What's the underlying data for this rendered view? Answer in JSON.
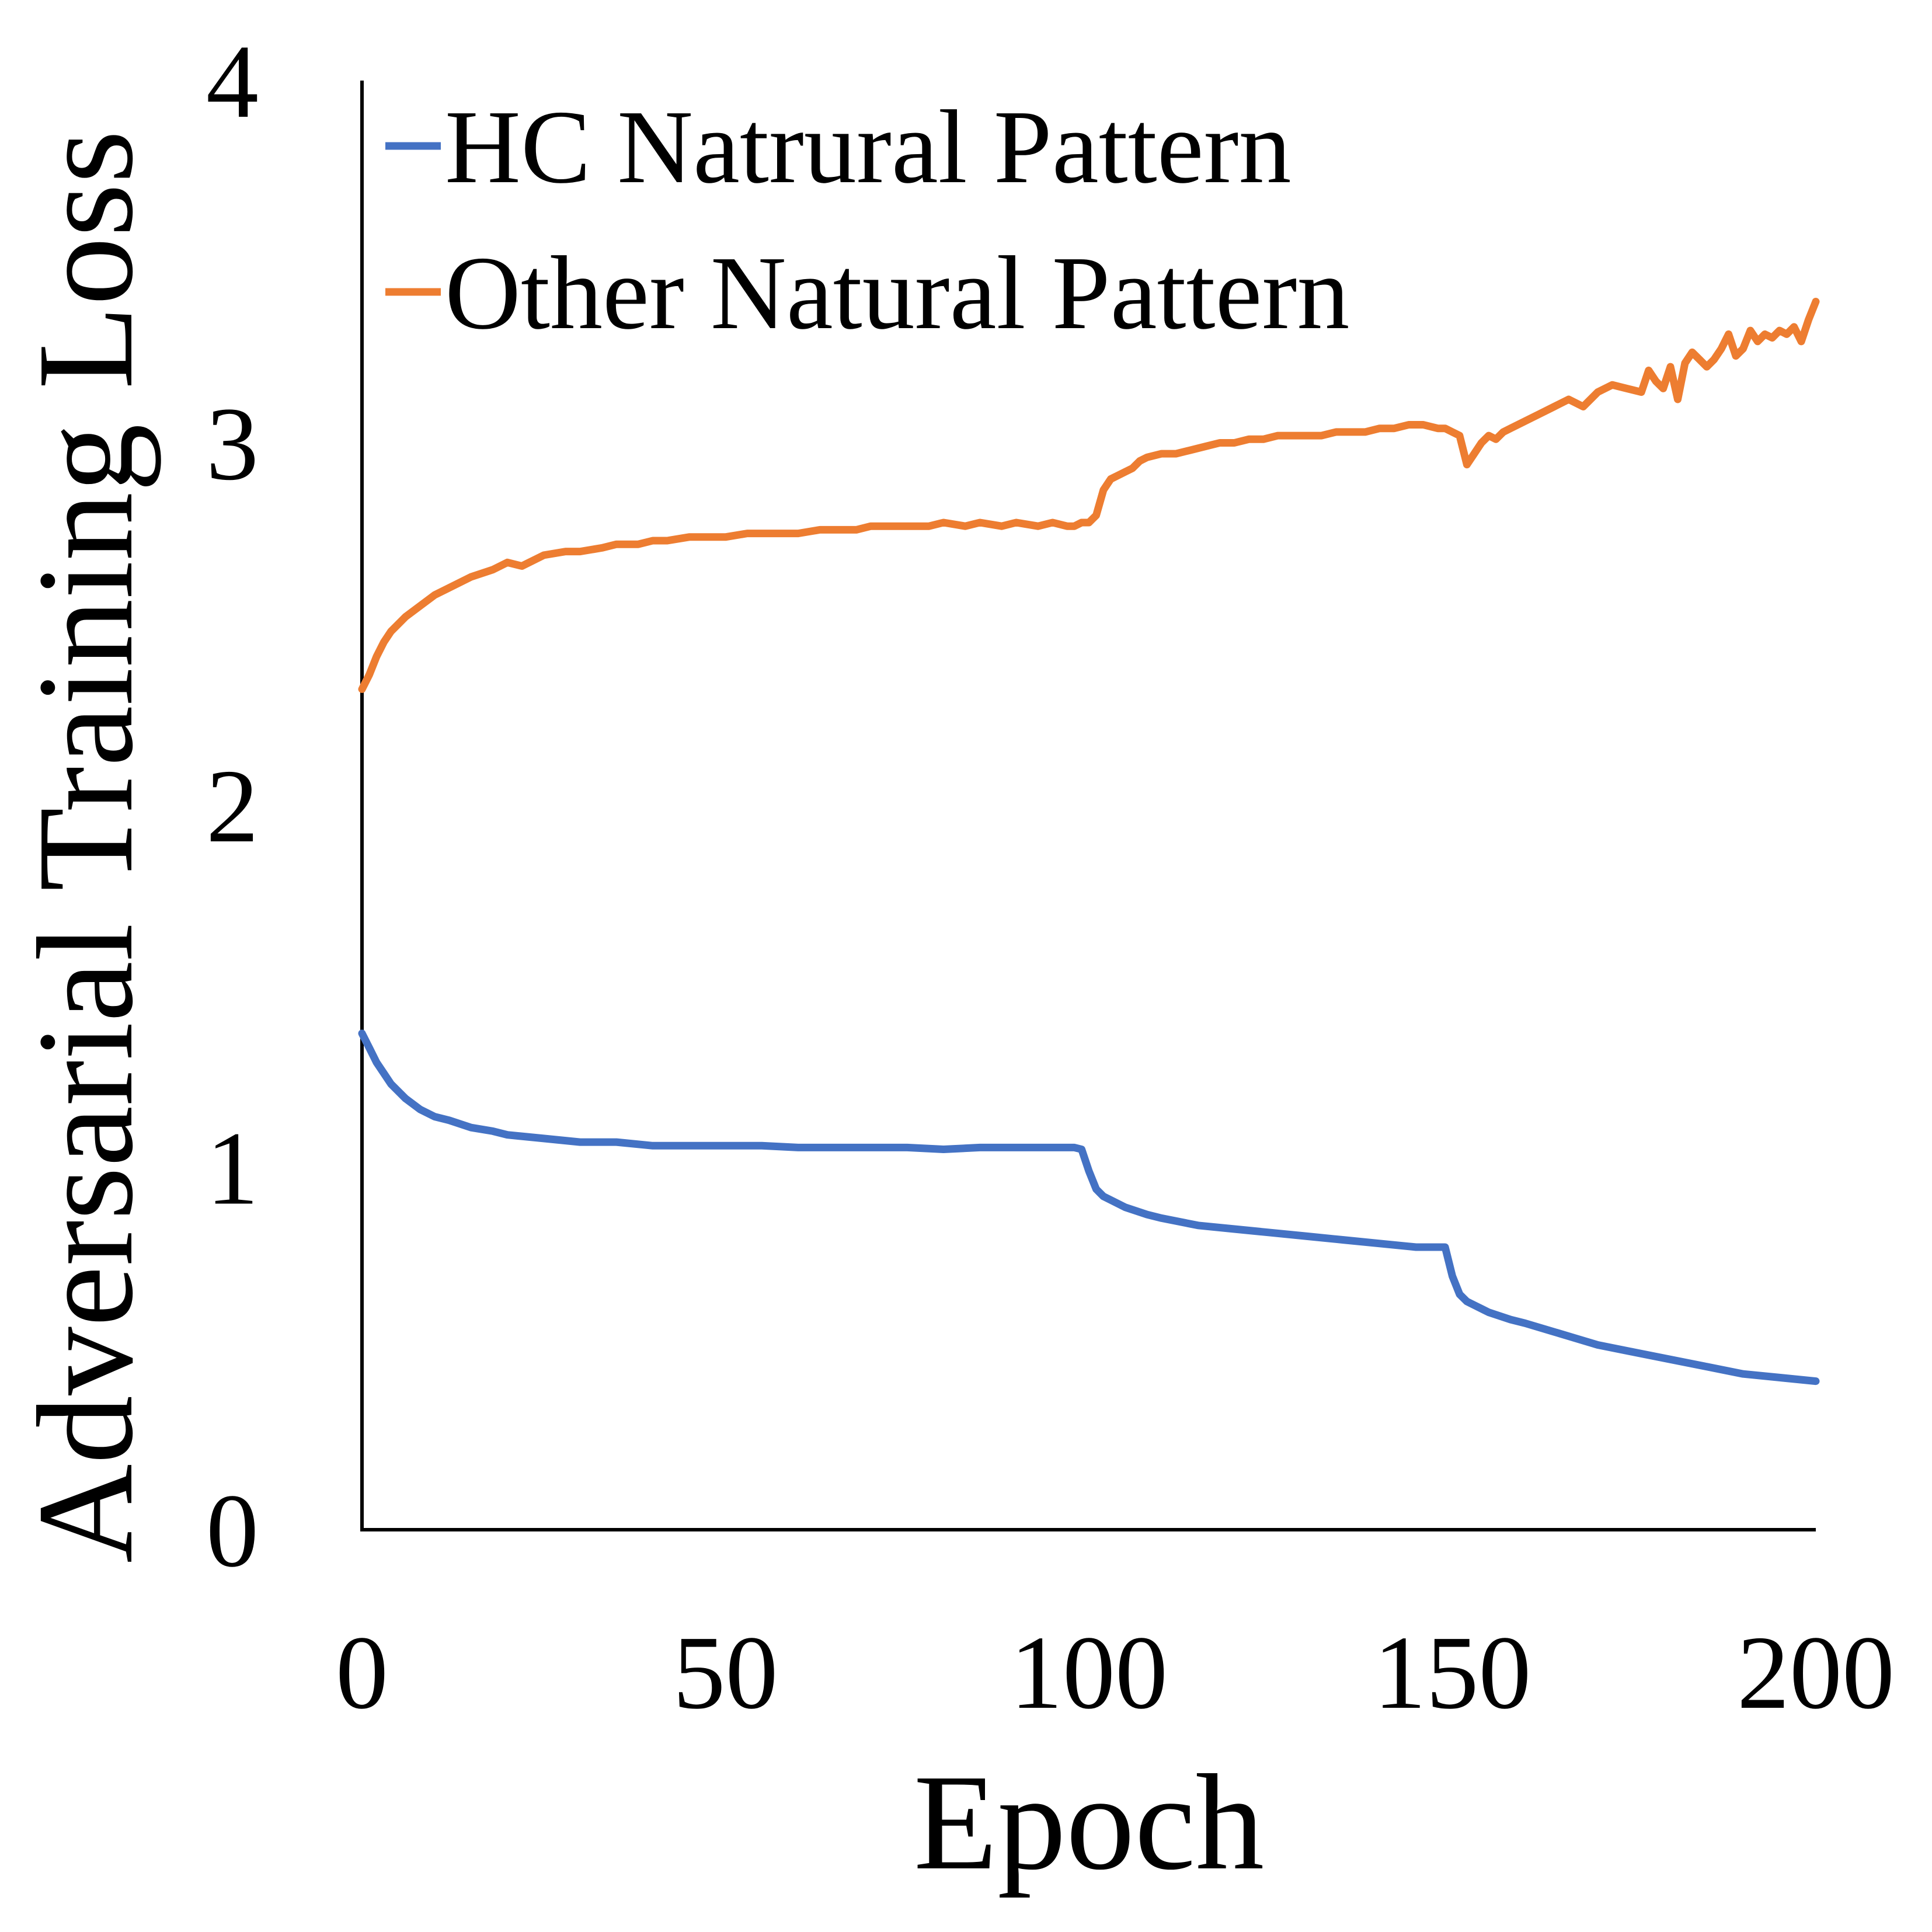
{
  "chart_data": {
    "type": "line",
    "title": "",
    "xlabel": "Epoch",
    "ylabel": "Adversarial Training Loss",
    "xlim": [
      0,
      200
    ],
    "ylim": [
      0,
      4
    ],
    "xticks": [
      0,
      50,
      100,
      150,
      200
    ],
    "yticks": [
      0,
      1,
      2,
      3,
      4
    ],
    "xtick_labels": [
      "0",
      "50",
      "100",
      "150",
      "200"
    ],
    "ytick_labels": [
      "0",
      "1",
      "2",
      "3",
      "4"
    ],
    "grid": false,
    "legend_position": "top-left",
    "series": [
      {
        "name": "HC Natrural Pattern",
        "color": "#4472C4",
        "x": [
          0,
          1,
          2,
          3,
          4,
          5,
          6,
          8,
          10,
          12,
          15,
          18,
          20,
          25,
          30,
          35,
          40,
          45,
          50,
          55,
          60,
          65,
          70,
          75,
          80,
          85,
          90,
          95,
          98,
          99,
          100,
          101,
          102,
          103,
          105,
          108,
          110,
          115,
          120,
          125,
          130,
          135,
          140,
          145,
          148,
          149,
          150,
          151,
          152,
          153,
          155,
          158,
          160,
          165,
          170,
          175,
          180,
          185,
          190,
          195,
          200
        ],
        "y": [
          1.37,
          1.33,
          1.29,
          1.26,
          1.23,
          1.21,
          1.19,
          1.16,
          1.14,
          1.13,
          1.11,
          1.1,
          1.09,
          1.08,
          1.07,
          1.07,
          1.06,
          1.06,
          1.06,
          1.06,
          1.055,
          1.055,
          1.055,
          1.055,
          1.05,
          1.055,
          1.055,
          1.055,
          1.055,
          1.05,
          0.99,
          0.94,
          0.92,
          0.91,
          0.89,
          0.87,
          0.86,
          0.84,
          0.83,
          0.82,
          0.81,
          0.8,
          0.79,
          0.78,
          0.78,
          0.78,
          0.7,
          0.65,
          0.63,
          0.62,
          0.6,
          0.58,
          0.57,
          0.54,
          0.51,
          0.49,
          0.47,
          0.45,
          0.43,
          0.42,
          0.41
        ]
      },
      {
        "name": "Other Natural Pattern",
        "color": "#ED7D31",
        "x": [
          0,
          1,
          2,
          3,
          4,
          5,
          6,
          8,
          10,
          12,
          15,
          18,
          20,
          22,
          25,
          28,
          30,
          33,
          35,
          38,
          40,
          42,
          45,
          48,
          50,
          53,
          55,
          58,
          60,
          63,
          65,
          68,
          70,
          73,
          75,
          78,
          80,
          83,
          85,
          88,
          90,
          93,
          95,
          97,
          98,
          99,
          100,
          101,
          102,
          103,
          104,
          105,
          106,
          107,
          108,
          110,
          112,
          114,
          116,
          118,
          120,
          122,
          124,
          126,
          128,
          130,
          132,
          134,
          136,
          138,
          140,
          142,
          144,
          146,
          148,
          149,
          150,
          151,
          152,
          153,
          154,
          155,
          156,
          157,
          158,
          160,
          162,
          164,
          166,
          168,
          170,
          172,
          174,
          176,
          177,
          178,
          179,
          180,
          181,
          182,
          183,
          184,
          185,
          186,
          187,
          188,
          189,
          190,
          191,
          192,
          193,
          194,
          195,
          196,
          197,
          198,
          199,
          200
        ],
        "y": [
          2.32,
          2.36,
          2.41,
          2.45,
          2.48,
          2.5,
          2.52,
          2.55,
          2.58,
          2.6,
          2.63,
          2.65,
          2.67,
          2.66,
          2.69,
          2.7,
          2.7,
          2.71,
          2.72,
          2.72,
          2.73,
          2.73,
          2.74,
          2.74,
          2.74,
          2.75,
          2.75,
          2.75,
          2.75,
          2.76,
          2.76,
          2.76,
          2.77,
          2.77,
          2.77,
          2.77,
          2.78,
          2.77,
          2.78,
          2.77,
          2.78,
          2.77,
          2.78,
          2.77,
          2.77,
          2.78,
          2.78,
          2.8,
          2.87,
          2.9,
          2.91,
          2.92,
          2.93,
          2.95,
          2.96,
          2.97,
          2.97,
          2.98,
          2.99,
          3.0,
          3.0,
          3.01,
          3.01,
          3.02,
          3.02,
          3.02,
          3.02,
          3.03,
          3.03,
          3.03,
          3.04,
          3.04,
          3.05,
          3.05,
          3.04,
          3.04,
          3.03,
          3.02,
          2.94,
          2.97,
          3.0,
          3.02,
          3.01,
          3.03,
          3.04,
          3.06,
          3.08,
          3.1,
          3.12,
          3.1,
          3.14,
          3.16,
          3.15,
          3.14,
          3.2,
          3.17,
          3.15,
          3.21,
          3.12,
          3.22,
          3.25,
          3.23,
          3.21,
          3.23,
          3.26,
          3.3,
          3.24,
          3.26,
          3.31,
          3.28,
          3.3,
          3.29,
          3.31,
          3.3,
          3.32,
          3.28,
          3.34,
          3.39
        ]
      }
    ]
  }
}
